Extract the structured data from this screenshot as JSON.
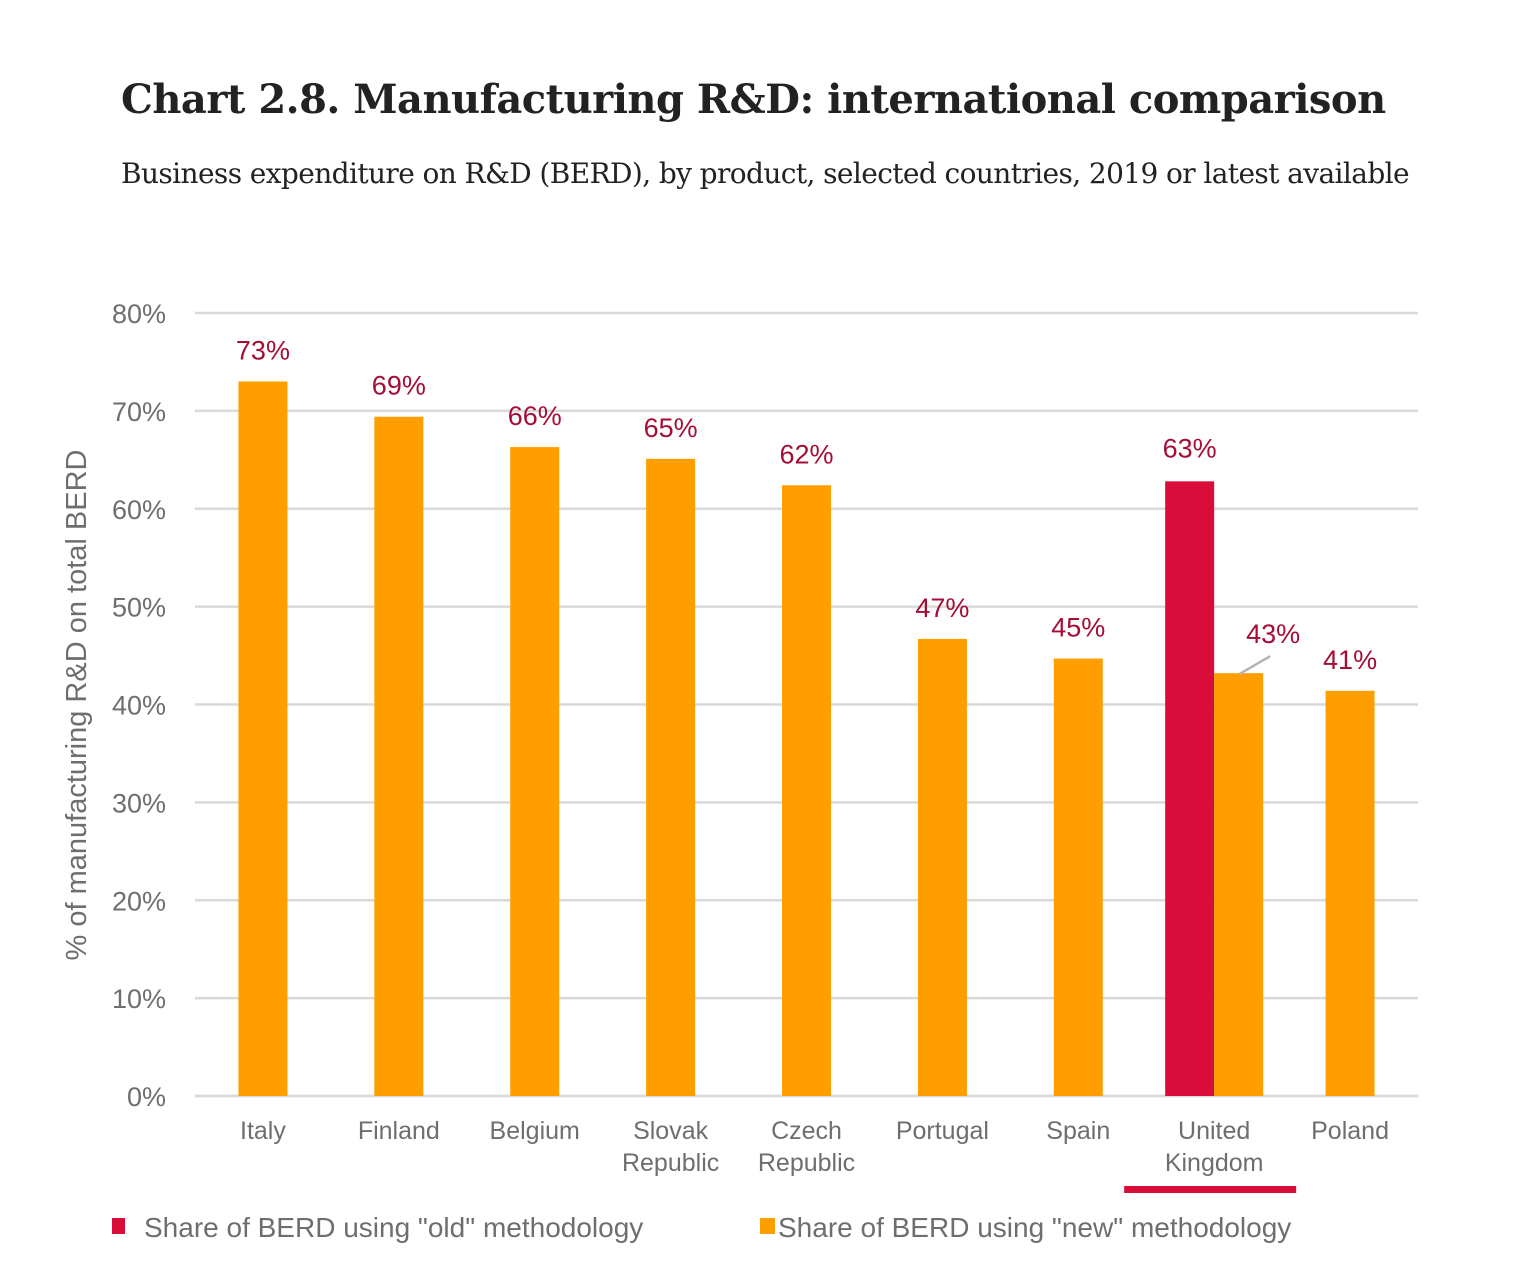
{
  "header": {
    "title": "Chart 2.8. Manufacturing R&D: international comparison",
    "subtitle": "Business expenditure on R&D (BERD), by product, selected countries, 2019 or latest available"
  },
  "chart_data": {
    "type": "bar",
    "title": "Chart 2.8. Manufacturing R&D: international comparison",
    "subtitle": "Business expenditure on R&D (BERD), by product, selected countries, 2019 or latest available",
    "xlabel": "",
    "ylabel": "% of manufacturing R&D on total BERD",
    "ylim": [
      0,
      80
    ],
    "yticks": [
      0,
      10,
      20,
      30,
      40,
      50,
      60,
      70,
      80
    ],
    "ytick_labels": [
      "0%",
      "10%",
      "20%",
      "30%",
      "40%",
      "50%",
      "60%",
      "70%",
      "80%"
    ],
    "grid": true,
    "legend_position": "bottom",
    "categories": [
      [
        "Italy"
      ],
      [
        "Finland"
      ],
      [
        "Belgium"
      ],
      [
        "Slovak",
        "Republic"
      ],
      [
        "Czech",
        "Republic"
      ],
      [
        "Portugal"
      ],
      [
        "Spain"
      ],
      [
        "United",
        "Kingdom"
      ],
      [
        "Poland"
      ]
    ],
    "series": [
      {
        "name": "Share of BERD using \"old\" methodology",
        "color": "#d90d3a",
        "values": [
          null,
          null,
          null,
          null,
          null,
          null,
          null,
          62.8,
          null
        ],
        "labels": [
          null,
          null,
          null,
          null,
          null,
          null,
          null,
          "63%",
          null
        ]
      },
      {
        "name": "Share of BERD using \"new\" methodology",
        "color": "#ff9e00",
        "values": [
          73.0,
          69.4,
          66.3,
          65.1,
          62.4,
          46.7,
          44.7,
          43.2,
          41.4
        ],
        "labels": [
          "73%",
          "69%",
          "66%",
          "65%",
          "62%",
          "47%",
          "45%",
          "43%",
          "41%"
        ]
      }
    ],
    "annotations": [
      {
        "type": "highlight-underline",
        "category": "United Kingdom",
        "color": "#d90d3a"
      }
    ],
    "label_color": "#a50d36"
  }
}
